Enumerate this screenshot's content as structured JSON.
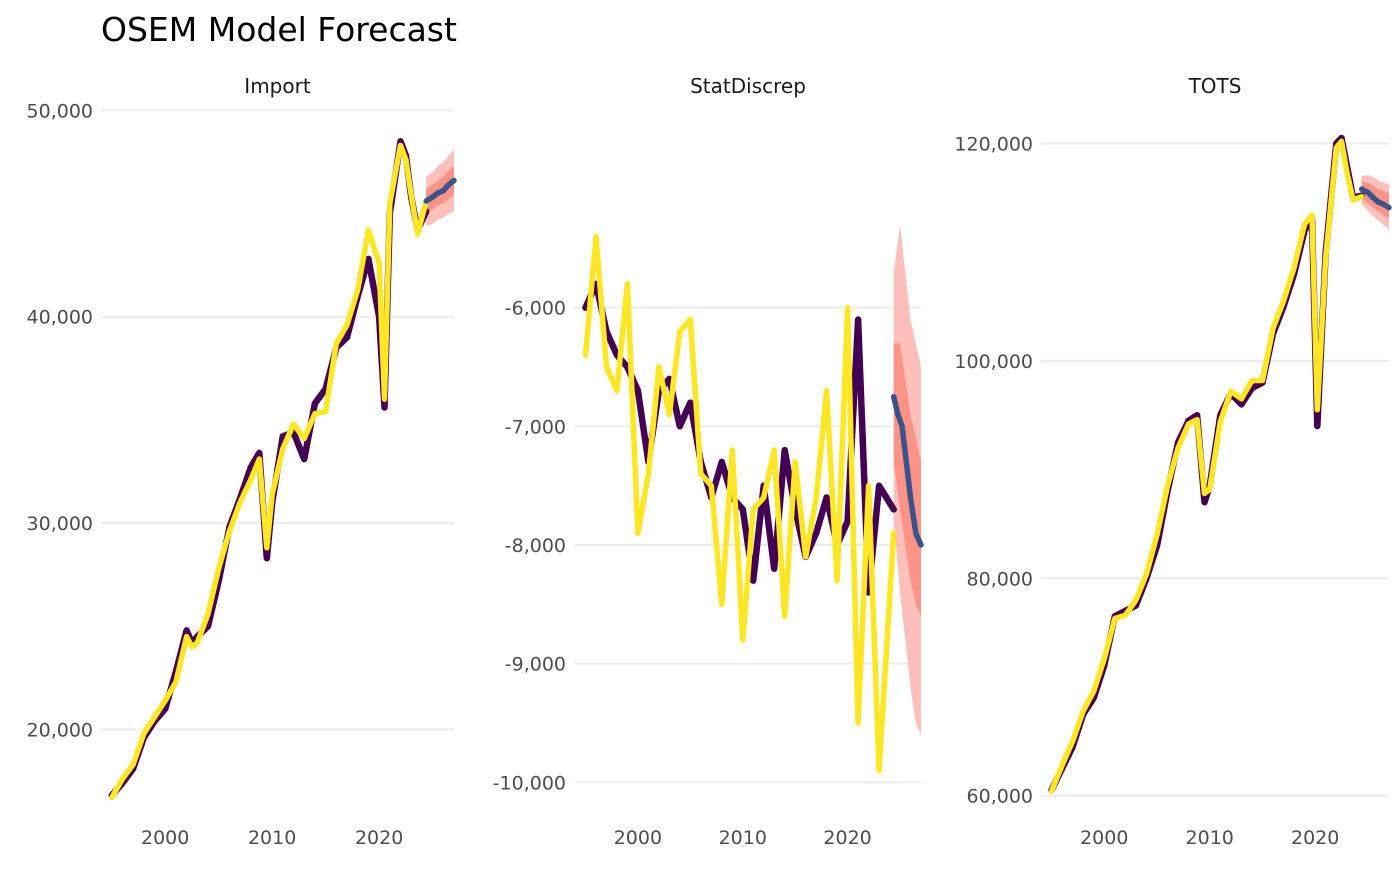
{
  "title": "OSEM Model Forecast",
  "colors": {
    "history_primary": "#440154",
    "history_secondary": "#FDE725",
    "forecast": "#3B528B",
    "interval_outer": "#FBB4AE",
    "interval_inner": "#FB8072",
    "grid": "#EBEBEB"
  },
  "chart_data": [
    {
      "type": "line",
      "panel": "Import",
      "xlim": [
        1994,
        2027
      ],
      "ylim": [
        16000,
        50500
      ],
      "x_ticks": [
        2000,
        2010,
        2020
      ],
      "x_tick_labels": [
        "2000",
        "2010",
        "2020"
      ],
      "y_ticks": [
        20000,
        30000,
        40000,
        50000
      ],
      "y_tick_labels": [
        "20,000",
        "30,000",
        "40,000",
        "50,000"
      ],
      "grid": true,
      "series": [
        {
          "role": "history",
          "x": [
            1995,
            1996,
            1997,
            1998,
            1999,
            2000,
            2001,
            2002,
            2002.5,
            2003,
            2004,
            2005,
            2006,
            2007,
            2008,
            2008.8,
            2009.5,
            2010,
            2011,
            2012,
            2013,
            2014,
            2015,
            2016,
            2017,
            2018,
            2019,
            2020,
            2020.5,
            2021,
            2022,
            2022.5,
            2023,
            2023.6,
            2024.4
          ],
          "y": [
            16800,
            17400,
            18100,
            19600,
            20400,
            21000,
            22800,
            24800,
            24200,
            24500,
            25000,
            27200,
            29800,
            31200,
            32700,
            33400,
            28300,
            31000,
            34200,
            34400,
            33100,
            35800,
            36500,
            38500,
            39000,
            41000,
            42800,
            40000,
            35600,
            45000,
            48500,
            47800,
            45800,
            44200,
            45100
          ]
        },
        {
          "role": "history_alt",
          "x": [
            1995,
            1996,
            1997,
            1998,
            1999,
            2000,
            2001,
            2002,
            2002.5,
            2003,
            2004,
            2005,
            2006,
            2007,
            2008,
            2008.8,
            2009.5,
            2010,
            2011,
            2012,
            2013,
            2014,
            2015,
            2016,
            2017,
            2018,
            2019,
            2020,
            2020.5,
            2021,
            2022,
            2022.5,
            2023,
            2023.6,
            2024.4
          ],
          "y": [
            16700,
            17600,
            18300,
            19800,
            20600,
            21400,
            22300,
            24500,
            24000,
            24200,
            25600,
            27800,
            29600,
            31000,
            32100,
            33100,
            28800,
            31400,
            33600,
            34800,
            34100,
            35300,
            35400,
            38700,
            39600,
            41300,
            44200,
            42600,
            36000,
            45500,
            48300,
            47600,
            45900,
            44000,
            45600
          ]
        },
        {
          "role": "forecast",
          "x": [
            2024.4,
            2025,
            2025.5,
            2026,
            2026.5,
            2027
          ],
          "y": [
            45600,
            45800,
            46000,
            46100,
            46400,
            46600
          ]
        }
      ],
      "bands": [
        {
          "level": "outer",
          "x": [
            2024.4,
            2025,
            2025.5,
            2026,
            2026.5,
            2027
          ],
          "lower": [
            44400,
            44500,
            44700,
            44800,
            45000,
            45100
          ],
          "upper": [
            46800,
            47000,
            47300,
            47500,
            47800,
            48100
          ]
        },
        {
          "level": "inner",
          "x": [
            2024.4,
            2025,
            2025.5,
            2026,
            2026.5,
            2027
          ],
          "lower": [
            45000,
            45200,
            45400,
            45500,
            45700,
            45900
          ],
          "upper": [
            46200,
            46400,
            46600,
            46800,
            47100,
            47300
          ]
        }
      ]
    },
    {
      "type": "line",
      "panel": "StatDiscrep",
      "xlim": [
        1994,
        2027
      ],
      "ylim": [
        -10250,
        -4250
      ],
      "x_ticks": [
        2000,
        2010,
        2020
      ],
      "x_tick_labels": [
        "2000",
        "2010",
        "2020"
      ],
      "y_ticks": [
        -10000,
        -9000,
        -8000,
        -7000,
        -6000
      ],
      "y_tick_labels": [
        "-10,000",
        "-9,000",
        "-8,000",
        "-7,000",
        "-6,000"
      ],
      "grid": true,
      "series": [
        {
          "role": "history",
          "x": [
            1995,
            1996,
            1997,
            1998,
            1999,
            2000,
            2001,
            2002,
            2003,
            2004,
            2005,
            2006,
            2007,
            2008,
            2009,
            2010,
            2011,
            2012,
            2013,
            2014,
            2015,
            2016,
            2017,
            2018,
            2019,
            2020,
            2021,
            2022,
            2023,
            2024.4
          ],
          "y": [
            -6000,
            -5800,
            -6200,
            -6400,
            -6500,
            -6700,
            -7300,
            -6700,
            -6600,
            -7000,
            -6800,
            -7300,
            -7600,
            -7300,
            -7600,
            -7700,
            -8300,
            -7500,
            -8200,
            -7200,
            -7700,
            -8100,
            -7900,
            -7600,
            -8000,
            -7800,
            -6100,
            -8400,
            -7500,
            -7700
          ]
        },
        {
          "role": "history_alt",
          "x": [
            1995,
            1996,
            1997,
            1998,
            1999,
            2000,
            2001,
            2002,
            2003,
            2004,
            2005,
            2006,
            2007,
            2008,
            2009,
            2010,
            2011,
            2012,
            2013,
            2014,
            2015,
            2016,
            2017,
            2018,
            2019,
            2020,
            2021,
            2022,
            2023,
            2024.4
          ],
          "y": [
            -6400,
            -5400,
            -6500,
            -6700,
            -5800,
            -7900,
            -7400,
            -6500,
            -6900,
            -6200,
            -6100,
            -7400,
            -7500,
            -8500,
            -7200,
            -8800,
            -7700,
            -7600,
            -7200,
            -8600,
            -7300,
            -8100,
            -7600,
            -6700,
            -8300,
            -6000,
            -9500,
            -7500,
            -9900,
            -7900
          ]
        },
        {
          "role": "forecast",
          "x": [
            2024.4,
            2024.8,
            2025.2,
            2025.6,
            2026,
            2026.5,
            2027
          ],
          "y": [
            -6750,
            -6900,
            -7000,
            -7300,
            -7600,
            -7900,
            -8000
          ]
        }
      ],
      "bands": [
        {
          "level": "outer",
          "x": [
            2024.4,
            2025,
            2025.5,
            2026,
            2026.5,
            2027
          ],
          "lower": [
            -7800,
            -8400,
            -8800,
            -9200,
            -9500,
            -9600
          ],
          "upper": [
            -5700,
            -5300,
            -5700,
            -6100,
            -6300,
            -6500
          ]
        },
        {
          "level": "inner",
          "x": [
            2024.4,
            2025,
            2025.5,
            2026,
            2026.5,
            2027
          ],
          "lower": [
            -7300,
            -7700,
            -8000,
            -8300,
            -8500,
            -8600
          ],
          "upper": [
            -6300,
            -6300,
            -6600,
            -6900,
            -7100,
            -7300
          ]
        }
      ]
    },
    {
      "type": "line",
      "panel": "TOTS",
      "xlim": [
        1994,
        2027
      ],
      "ylim": [
        58500,
        124000
      ],
      "x_ticks": [
        2000,
        2010,
        2020
      ],
      "x_tick_labels": [
        "2000",
        "2010",
        "2020"
      ],
      "y_ticks": [
        60000,
        80000,
        100000,
        120000
      ],
      "y_tick_labels": [
        "60,000",
        "80,000",
        "100,000",
        "120,000"
      ],
      "grid": true,
      "series": [
        {
          "role": "history",
          "x": [
            1995,
            1996,
            1997,
            1998,
            1999,
            2000,
            2001,
            2002,
            2003,
            2004,
            2005,
            2006,
            2007,
            2008,
            2008.8,
            2009.5,
            2010,
            2011,
            2012,
            2013,
            2014,
            2015,
            2016,
            2017,
            2018,
            2019,
            2019.7,
            2020.2,
            2021,
            2022,
            2022.5,
            2023,
            2023.6,
            2024.4
          ],
          "y": [
            60500,
            62500,
            64500,
            67500,
            69000,
            72000,
            76500,
            77000,
            77500,
            80000,
            83000,
            88000,
            92500,
            94500,
            95000,
            87000,
            88500,
            95000,
            97000,
            96000,
            97500,
            98000,
            102500,
            105000,
            108000,
            112000,
            113000,
            94000,
            110000,
            120000,
            120500,
            118000,
            115000,
            115200
          ]
        },
        {
          "role": "history_alt",
          "x": [
            1995,
            1996,
            1997,
            1998,
            1999,
            2000,
            2001,
            2002,
            2003,
            2004,
            2005,
            2006,
            2007,
            2008,
            2008.8,
            2009.5,
            2010,
            2011,
            2012,
            2013,
            2014,
            2015,
            2016,
            2017,
            2018,
            2019,
            2019.7,
            2020.2,
            2021,
            2022,
            2022.5,
            2023,
            2023.6,
            2024.4
          ],
          "y": [
            60400,
            62800,
            65000,
            67800,
            69600,
            72600,
            76300,
            76600,
            78000,
            80400,
            84000,
            88500,
            92000,
            94200,
            94600,
            87800,
            88200,
            94400,
            97200,
            96500,
            98200,
            98200,
            103000,
            105500,
            108600,
            112600,
            113400,
            95500,
            109500,
            119600,
            120200,
            117400,
            114800,
            115100
          ]
        },
        {
          "role": "forecast",
          "x": [
            2024.4,
            2025,
            2025.5,
            2026,
            2026.5,
            2027
          ],
          "y": [
            115800,
            115500,
            115000,
            114600,
            114400,
            114100
          ]
        }
      ],
      "bands": [
        {
          "level": "outer",
          "x": [
            2024.4,
            2025,
            2025.5,
            2026,
            2026.5,
            2027
          ],
          "lower": [
            114400,
            113800,
            113300,
            112900,
            112500,
            112100
          ],
          "upper": [
            117000,
            117100,
            116900,
            116600,
            116400,
            116200
          ]
        },
        {
          "level": "inner",
          "x": [
            2024.4,
            2025,
            2025.5,
            2026,
            2026.5,
            2027
          ],
          "lower": [
            115000,
            114500,
            114100,
            113700,
            113400,
            113100
          ],
          "upper": [
            116500,
            116400,
            116100,
            115800,
            115600,
            115400
          ]
        }
      ]
    }
  ]
}
